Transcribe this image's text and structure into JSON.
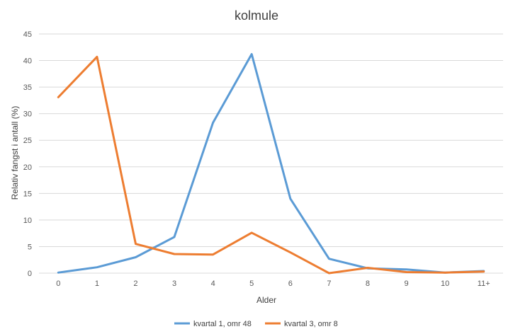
{
  "chart_data": {
    "type": "line",
    "title": "kolmule",
    "xlabel": "Alder",
    "ylabel": "Relativ fangst i antall (%)",
    "categories": [
      "0",
      "1",
      "2",
      "3",
      "4",
      "5",
      "6",
      "7",
      "8",
      "9",
      "10",
      "11+"
    ],
    "ylim": [
      0,
      45
    ],
    "yticks": [
      0,
      5,
      10,
      15,
      20,
      25,
      30,
      35,
      40,
      45
    ],
    "grid": true,
    "legend_position": "bottom",
    "series": [
      {
        "name": "kvartal 1, omr 48",
        "color": "#5B9BD5",
        "values": [
          0.1,
          1.1,
          3.0,
          6.8,
          28.3,
          41.2,
          14.0,
          2.7,
          0.9,
          0.7,
          0.1,
          0.4
        ]
      },
      {
        "name": "kvartal 3, omr 8",
        "color": "#ED7D31",
        "values": [
          33.1,
          40.7,
          5.5,
          3.6,
          3.5,
          7.6,
          3.9,
          0.0,
          1.0,
          0.2,
          0.1,
          0.3
        ]
      }
    ]
  }
}
